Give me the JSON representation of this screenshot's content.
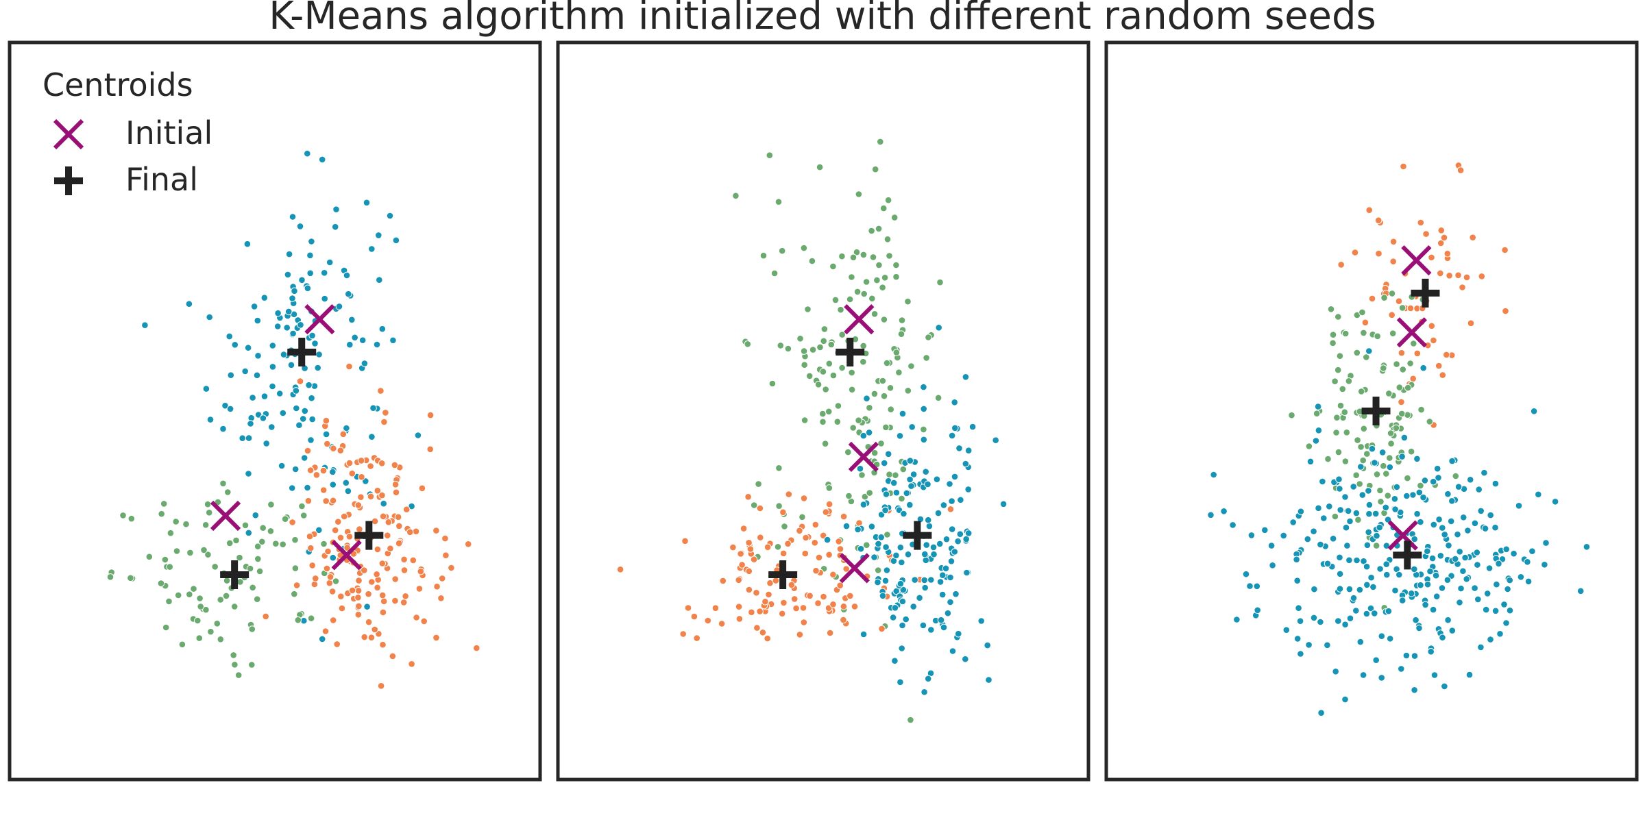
{
  "title": "K-Means algorithm initialized with different random seeds",
  "legend": {
    "title": "Centroids",
    "placement": "top-left of first panel",
    "entries": [
      {
        "label": "Initial",
        "marker": "x-icon",
        "color": "#990f75"
      },
      {
        "label": "Final",
        "marker": "plus-icon",
        "color": "#222222"
      }
    ]
  },
  "colors": {
    "orange": "#f0824a",
    "green": "#6aaa6e",
    "teal": "#1694b6",
    "initial_marker": "#990f75",
    "final_marker": "#222222",
    "frame": "#262626"
  },
  "chart_data": [
    {
      "type": "scatter",
      "panel": 1,
      "xlim": [
        0,
        100
      ],
      "ylim": [
        0,
        100
      ],
      "grid": false,
      "axes_ticks": false,
      "clusters": [
        {
          "color": "teal",
          "center": [
            56,
            58
          ],
          "spread": [
            10,
            14
          ],
          "points": 150
        },
        {
          "color": "green",
          "center": [
            40,
            25
          ],
          "spread": [
            13,
            6
          ],
          "points": 90
        },
        {
          "color": "orange",
          "center": [
            71,
            30
          ],
          "spread": [
            8,
            9
          ],
          "points": 170
        }
      ],
      "initial_centroids": [
        [
          60,
          64
        ],
        [
          39,
          34
        ],
        [
          66,
          28
        ]
      ],
      "final_centroids": [
        [
          56,
          59
        ],
        [
          41,
          25
        ],
        [
          71,
          31
        ]
      ]
    },
    {
      "type": "scatter",
      "panel": 2,
      "xlim": [
        0,
        100
      ],
      "ylim": [
        0,
        100
      ],
      "grid": false,
      "axes_ticks": false,
      "clusters": [
        {
          "color": "green",
          "center": [
            57,
            56
          ],
          "spread": [
            10,
            15
          ],
          "points": 160
        },
        {
          "color": "orange",
          "center": [
            42,
            25
          ],
          "spread": [
            12,
            6
          ],
          "points": 120
        },
        {
          "color": "teal",
          "center": [
            71,
            30
          ],
          "spread": [
            8,
            10
          ],
          "points": 170
        }
      ],
      "initial_centroids": [
        [
          58,
          64
        ],
        [
          59,
          43
        ],
        [
          57,
          26
        ]
      ],
      "final_centroids": [
        [
          56,
          59
        ],
        [
          41,
          25
        ],
        [
          71,
          31
        ]
      ]
    },
    {
      "type": "scatter",
      "panel": 3,
      "xlim": [
        0,
        100
      ],
      "ylim": [
        0,
        100
      ],
      "grid": false,
      "axes_ticks": false,
      "clusters": [
        {
          "color": "orange",
          "center": [
            62,
            70
          ],
          "spread": [
            8,
            9
          ],
          "points": 60
        },
        {
          "color": "green",
          "center": [
            51,
            49
          ],
          "spread": [
            7,
            9
          ],
          "points": 110
        },
        {
          "color": "teal",
          "center": [
            58,
            28
          ],
          "spread": [
            16,
            9
          ],
          "points": 280
        }
      ],
      "initial_centroids": [
        [
          60,
          73
        ],
        [
          59,
          62
        ],
        [
          57,
          31
        ]
      ],
      "final_centroids": [
        [
          62,
          68
        ],
        [
          51,
          50
        ],
        [
          58,
          28
        ]
      ]
    }
  ]
}
